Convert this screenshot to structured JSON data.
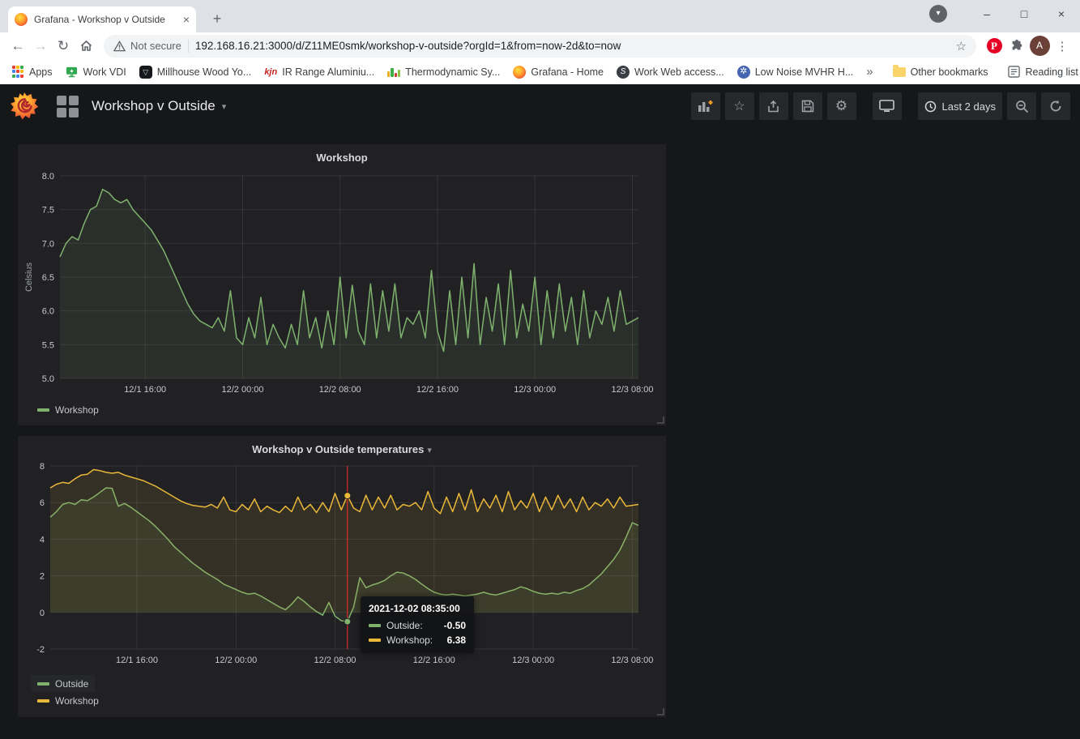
{
  "browser": {
    "tab_title": "Grafana - Workshop v Outside",
    "security_text": "Not secure",
    "url": "192.168.16.21:3000/d/Z11ME0smk/workshop-v-outside?orgId=1&from=now-2d&to=now",
    "bookmarks": [
      {
        "label": "Apps"
      },
      {
        "label": "Work VDI"
      },
      {
        "label": "Millhouse Wood Yo...",
        "icon_text": "▽"
      },
      {
        "label": "IR Range Aluminiu...",
        "icon_text": "kjn"
      },
      {
        "label": "Thermodynamic Sy..."
      },
      {
        "label": "Grafana - Home"
      },
      {
        "label": "Work Web access...",
        "icon_text": "S"
      },
      {
        "label": "Low Noise MVHR H...",
        "icon_text": "✲"
      }
    ],
    "other_bookmarks": "Other bookmarks",
    "reading_list": "Reading list",
    "avatar_letter": "A",
    "pinterest_letter": "P"
  },
  "icons": {
    "back": "←",
    "forward": "→",
    "reload": "↻",
    "kebab": "⋮",
    "tab_close": "×",
    "new_tab": "+",
    "update_arrow": "▾",
    "win_min": "–",
    "win_max": "□",
    "win_close": "×",
    "overflow": "»",
    "star": "☆",
    "gear": "⚙",
    "caret": "▾"
  },
  "grafana": {
    "dashboard_title": "Workshop v Outside",
    "time_range": "Last 2 days"
  },
  "tooltip": {
    "time": "2021-12-02 08:35:00",
    "rows": [
      {
        "label": "Outside:",
        "value": "-0.50"
      },
      {
        "label": "Workshop:",
        "value": "6.38"
      }
    ]
  },
  "chart_data": [
    {
      "type": "line",
      "title": "Workshop",
      "ylabel": "Celsius",
      "ylim": [
        5,
        8
      ],
      "yticks": [
        8,
        7.5,
        7,
        6.5,
        6,
        5.5,
        5
      ],
      "ytick_labels": [
        "8.0",
        "7.5",
        "7.0",
        "6.5",
        "6.0",
        "5.5",
        "5.0"
      ],
      "x_step_hours": 0.5,
      "x_start_time": "12/1 09:00",
      "xticks": [
        {
          "hour": 7,
          "label": "12/1 16:00"
        },
        {
          "hour": 15,
          "label": "12/2 00:00"
        },
        {
          "hour": 23,
          "label": "12/2 08:00"
        },
        {
          "hour": 31,
          "label": "12/2 16:00"
        },
        {
          "hour": 39,
          "label": "12/3 00:00"
        },
        {
          "hour": 47,
          "label": "12/3 08:00"
        }
      ],
      "fill_to": 5,
      "grid": true,
      "legend_position": "bottom-left",
      "series": [
        {
          "name": "Workshop",
          "color": "#7eb26d",
          "values": [
            6.8,
            7.0,
            7.1,
            7.05,
            7.3,
            7.5,
            7.55,
            7.8,
            7.75,
            7.65,
            7.6,
            7.65,
            7.5,
            7.4,
            7.3,
            7.2,
            7.05,
            6.9,
            6.7,
            6.5,
            6.3,
            6.1,
            5.95,
            5.85,
            5.8,
            5.75,
            5.9,
            5.7,
            6.3,
            5.6,
            5.5,
            5.9,
            5.6,
            6.2,
            5.5,
            5.8,
            5.6,
            5.45,
            5.8,
            5.5,
            6.3,
            5.6,
            5.9,
            5.45,
            6.0,
            5.5,
            6.5,
            5.6,
            6.38,
            5.7,
            5.5,
            6.4,
            5.6,
            6.3,
            5.7,
            6.4,
            5.6,
            5.9,
            5.8,
            6.0,
            5.6,
            6.6,
            5.7,
            5.4,
            6.3,
            5.5,
            6.5,
            5.6,
            6.7,
            5.5,
            6.2,
            5.7,
            6.4,
            5.5,
            6.6,
            5.6,
            6.1,
            5.7,
            6.5,
            5.5,
            6.3,
            5.6,
            6.4,
            5.7,
            6.2,
            5.5,
            6.3,
            5.6,
            6.0,
            5.8,
            6.2,
            5.7,
            6.3,
            5.8,
            5.85,
            5.9
          ]
        }
      ]
    },
    {
      "type": "line",
      "title": "Workshop v Outside temperatures",
      "ylabel": "",
      "ylim": [
        -2,
        8
      ],
      "yticks": [
        8,
        6,
        4,
        2,
        0,
        -2
      ],
      "ytick_labels": [
        "8",
        "6",
        "4",
        "2",
        "0",
        "-2"
      ],
      "x_step_hours": 0.5,
      "x_start_time": "12/1 09:00",
      "xticks": [
        {
          "hour": 7,
          "label": "12/1 16:00"
        },
        {
          "hour": 15,
          "label": "12/2 00:00"
        },
        {
          "hour": 23,
          "label": "12/2 08:00"
        },
        {
          "hour": 31,
          "label": "12/2 16:00"
        },
        {
          "hour": 39,
          "label": "12/3 00:00"
        },
        {
          "hour": 47,
          "label": "12/3 08:00"
        }
      ],
      "fill_to": 0,
      "grid": true,
      "legend_position": "bottom-left",
      "series": [
        {
          "name": "Outside",
          "color": "#7eb26d",
          "values": [
            5.2,
            5.5,
            5.9,
            6.0,
            5.9,
            6.15,
            6.1,
            6.3,
            6.55,
            6.8,
            6.78,
            5.8,
            5.95,
            5.75,
            5.5,
            5.25,
            5.0,
            4.7,
            4.35,
            4.0,
            3.6,
            3.3,
            3.0,
            2.7,
            2.45,
            2.2,
            2.0,
            1.8,
            1.55,
            1.4,
            1.25,
            1.1,
            1.0,
            1.05,
            0.9,
            0.7,
            0.5,
            0.3,
            0.15,
            0.45,
            0.85,
            0.6,
            0.3,
            0.05,
            -0.15,
            0.55,
            -0.2,
            -0.45,
            -0.5,
            0.3,
            1.9,
            1.35,
            1.5,
            1.6,
            1.75,
            2.0,
            2.2,
            2.15,
            2.0,
            1.8,
            1.55,
            1.3,
            1.1,
            1.0,
            0.95,
            1.0,
            0.95,
            0.9,
            0.95,
            1.0,
            1.1,
            1.0,
            0.95,
            1.05,
            1.15,
            1.25,
            1.4,
            1.3,
            1.15,
            1.05,
            1.0,
            1.05,
            1.0,
            1.1,
            1.05,
            1.2,
            1.3,
            1.5,
            1.8,
            2.1,
            2.5,
            2.9,
            3.4,
            4.1,
            4.9,
            4.75
          ]
        },
        {
          "name": "Workshop",
          "color": "#eab839",
          "values": [
            6.8,
            7.0,
            7.1,
            7.05,
            7.3,
            7.5,
            7.55,
            7.8,
            7.75,
            7.65,
            7.6,
            7.65,
            7.5,
            7.4,
            7.3,
            7.2,
            7.05,
            6.9,
            6.7,
            6.5,
            6.3,
            6.1,
            5.95,
            5.85,
            5.8,
            5.75,
            5.9,
            5.7,
            6.3,
            5.6,
            5.5,
            5.9,
            5.6,
            6.2,
            5.5,
            5.8,
            5.6,
            5.45,
            5.8,
            5.5,
            6.3,
            5.6,
            5.9,
            5.45,
            6.0,
            5.5,
            6.5,
            5.6,
            6.38,
            5.7,
            5.5,
            6.4,
            5.6,
            6.3,
            5.7,
            6.4,
            5.6,
            5.9,
            5.8,
            6.0,
            5.6,
            6.6,
            5.7,
            5.4,
            6.3,
            5.5,
            6.5,
            5.6,
            6.7,
            5.5,
            6.2,
            5.7,
            6.4,
            5.5,
            6.6,
            5.6,
            6.1,
            5.7,
            6.5,
            5.5,
            6.3,
            5.6,
            6.4,
            5.7,
            6.2,
            5.5,
            6.3,
            5.6,
            6.0,
            5.8,
            6.2,
            5.7,
            6.3,
            5.8,
            5.85,
            5.9
          ]
        }
      ],
      "cursor": {
        "hour": 24,
        "color": "#ff2b2b",
        "points": [
          {
            "series": 0,
            "value": -0.5
          },
          {
            "series": 1,
            "value": 6.38
          }
        ]
      }
    }
  ]
}
